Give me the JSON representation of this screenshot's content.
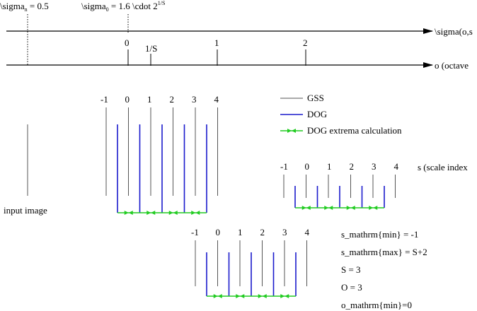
{
  "colors": {
    "gss": "#555555",
    "dog": "#1a1acc",
    "extrema": "#22cc22",
    "axis": "#000000"
  },
  "top_labels": {
    "sigma_n_base": "\\sigma",
    "sigma_n_sub": "n",
    "sigma_n_rest": " = 0.5",
    "sigma_0_base": "\\sigma",
    "sigma_0_sub": "0",
    "sigma_0_rest": " = 1.6 \\cdot 2",
    "sigma_0_sup": "1/S"
  },
  "axes": {
    "sigma_axis_label": "\\sigma(o,s",
    "octave_axis_label": "o (octave",
    "octave_ticks": [
      "0",
      "1/S",
      "1",
      "2"
    ]
  },
  "legend": {
    "gss": "GSS",
    "dog": "DOG",
    "extrema": "DOG extrema calculation"
  },
  "input_image_label": "input image",
  "scale_index_label": "s (scale index",
  "octaves": [
    {
      "labels": [
        "-1",
        "0",
        "1",
        "2",
        "3",
        "4"
      ]
    },
    {
      "labels": [
        "-1",
        "0",
        "1",
        "2",
        "3",
        "4"
      ]
    },
    {
      "labels": [
        "-1",
        "0",
        "1",
        "2",
        "3",
        "4"
      ]
    }
  ],
  "equations": [
    "s_mathrm{min} = -1",
    "s_mathrm{max} = S+2",
    "S = 3",
    "O = 3",
    "o_mathrm{min}=0"
  ]
}
